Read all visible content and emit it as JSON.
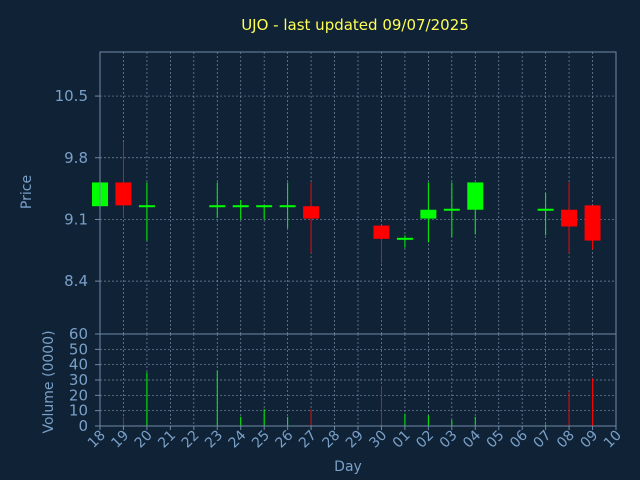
{
  "chart_data": [
    {
      "type": "candlestick",
      "title": "UJO - last updated 09/07/2025",
      "ylabel": "Price",
      "ylim": [
        7.8,
        11.0
      ],
      "yticks": [
        "10.5",
        "9.8",
        "9.1",
        "8.4"
      ],
      "ytick_values": [
        10.5,
        9.8,
        9.1,
        8.4
      ],
      "grid": true,
      "up_color": "#00ff00",
      "down_color": "#ff0000",
      "categories": [
        "18",
        "19",
        "20",
        "21",
        "22",
        "23",
        "24",
        "25",
        "26",
        "27",
        "28",
        "29",
        "30",
        "01",
        "02",
        "03",
        "04",
        "05",
        "06",
        "07",
        "08",
        "09",
        "10"
      ],
      "ohlc": [
        {
          "day": "18",
          "open": 9.25,
          "high": 9.52,
          "low": 9.25,
          "close": 9.52
        },
        {
          "day": "19",
          "open": 9.52,
          "high": 9.98,
          "low": 9.12,
          "close": 9.26
        },
        {
          "day": "20",
          "open": 9.25,
          "high": 9.52,
          "low": 8.86,
          "close": 9.25
        },
        {
          "day": "23",
          "open": 9.25,
          "high": 9.52,
          "low": 9.12,
          "close": 9.25
        },
        {
          "day": "24",
          "open": 9.25,
          "high": 9.32,
          "low": 9.1,
          "close": 9.25
        },
        {
          "day": "25",
          "open": 9.25,
          "high": 9.25,
          "low": 9.1,
          "close": 9.25
        },
        {
          "day": "26",
          "open": 9.25,
          "high": 9.52,
          "low": 9.0,
          "close": 9.25
        },
        {
          "day": "27",
          "open": 9.25,
          "high": 9.52,
          "low": 8.72,
          "close": 9.11
        },
        {
          "day": "30",
          "open": 9.03,
          "high": 9.03,
          "low": 8.6,
          "close": 8.88
        },
        {
          "day": "01",
          "open": 8.88,
          "high": 8.92,
          "low": 8.78,
          "close": 8.88
        },
        {
          "day": "02",
          "open": 9.11,
          "high": 9.52,
          "low": 8.84,
          "close": 9.21
        },
        {
          "day": "03",
          "open": 9.21,
          "high": 9.52,
          "low": 8.9,
          "close": 9.21
        },
        {
          "day": "04",
          "open": 9.21,
          "high": 9.52,
          "low": 8.93,
          "close": 9.52
        },
        {
          "day": "07",
          "open": 9.21,
          "high": 9.4,
          "low": 8.92,
          "close": 9.21
        },
        {
          "day": "08",
          "open": 9.21,
          "high": 9.52,
          "low": 8.72,
          "close": 9.02
        },
        {
          "day": "09",
          "open": 9.26,
          "high": 9.26,
          "low": 8.76,
          "close": 8.86
        }
      ]
    },
    {
      "type": "bar",
      "ylabel": "Volume (0000)",
      "xlabel": "Day",
      "ylim": [
        0,
        60
      ],
      "yticks": [
        "60",
        "50",
        "40",
        "30",
        "20",
        "10",
        "0"
      ],
      "ytick_values": [
        60,
        50,
        40,
        30,
        20,
        10,
        0
      ],
      "grid": true,
      "categories": [
        "18",
        "19",
        "20",
        "21",
        "22",
        "23",
        "24",
        "25",
        "26",
        "27",
        "28",
        "29",
        "30",
        "01",
        "02",
        "03",
        "04",
        "05",
        "06",
        "07",
        "08",
        "09",
        "10"
      ],
      "volumes": [
        {
          "day": "18",
          "value": 0,
          "direction": "up"
        },
        {
          "day": "19",
          "value": 6,
          "direction": "down"
        },
        {
          "day": "20",
          "value": 35,
          "direction": "up"
        },
        {
          "day": "23",
          "value": 36,
          "direction": "up"
        },
        {
          "day": "24",
          "value": 6,
          "direction": "up"
        },
        {
          "day": "25",
          "value": 11,
          "direction": "up"
        },
        {
          "day": "26",
          "value": 6,
          "direction": "up"
        },
        {
          "day": "27",
          "value": 11,
          "direction": "down"
        },
        {
          "day": "30",
          "value": 26,
          "direction": "down"
        },
        {
          "day": "01",
          "value": 8,
          "direction": "up"
        },
        {
          "day": "02",
          "value": 7,
          "direction": "up"
        },
        {
          "day": "03",
          "value": 4,
          "direction": "up"
        },
        {
          "day": "04",
          "value": 6,
          "direction": "up"
        },
        {
          "day": "07",
          "value": 1,
          "direction": "up"
        },
        {
          "day": "08",
          "value": 22,
          "direction": "down"
        },
        {
          "day": "09",
          "value": 31,
          "direction": "down"
        }
      ]
    }
  ]
}
